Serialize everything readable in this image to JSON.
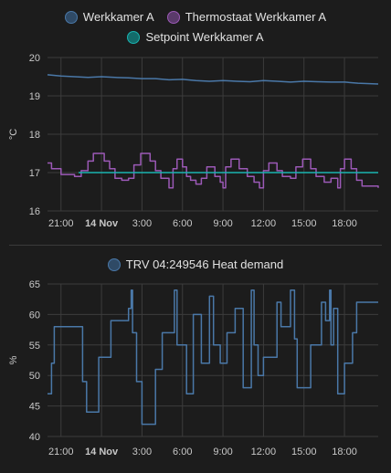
{
  "chart_data": [
    {
      "type": "line",
      "ylabel": "°C",
      "ylim": [
        16,
        20
      ],
      "yticks": [
        "16",
        "17",
        "18",
        "19",
        "20"
      ],
      "xlim": [
        20,
        44.5
      ],
      "xticks": [
        {
          "x": 21,
          "label": "21:00",
          "bold": false
        },
        {
          "x": 24,
          "label": "14 Nov",
          "bold": true
        },
        {
          "x": 27,
          "label": "3:00",
          "bold": false
        },
        {
          "x": 30,
          "label": "6:00",
          "bold": false
        },
        {
          "x": 33,
          "label": "9:00",
          "bold": false
        },
        {
          "x": 36,
          "label": "12:00",
          "bold": false
        },
        {
          "x": 39,
          "label": "15:00",
          "bold": false
        },
        {
          "x": 42,
          "label": "18:00",
          "bold": false
        }
      ],
      "grid": true,
      "legend_position": "top",
      "series": [
        {
          "name": "Werkkamer A",
          "color": "#4a78a8",
          "style": "line",
          "points": [
            [
              20,
              19.55
            ],
            [
              21,
              19.52
            ],
            [
              22,
              19.5
            ],
            [
              23,
              19.48
            ],
            [
              24,
              19.5
            ],
            [
              25,
              19.48
            ],
            [
              26,
              19.47
            ],
            [
              27,
              19.45
            ],
            [
              28,
              19.45
            ],
            [
              29,
              19.42
            ],
            [
              30,
              19.43
            ],
            [
              31,
              19.4
            ],
            [
              32,
              19.38
            ],
            [
              33,
              19.4
            ],
            [
              34,
              19.38
            ],
            [
              35,
              19.37
            ],
            [
              36,
              19.4
            ],
            [
              37,
              19.38
            ],
            [
              38,
              19.36
            ],
            [
              39,
              19.38
            ],
            [
              40,
              19.37
            ],
            [
              41,
              19.36
            ],
            [
              42,
              19.36
            ],
            [
              43,
              19.33
            ],
            [
              44.5,
              19.31
            ]
          ]
        },
        {
          "name": "Thermostaat Werkkamer A",
          "color": "#9b59b6",
          "style": "step",
          "points": [
            [
              20,
              17.25
            ],
            [
              20.3,
              17.1
            ],
            [
              21,
              16.95
            ],
            [
              22,
              16.9
            ],
            [
              22.5,
              17.05
            ],
            [
              23,
              17.3
            ],
            [
              23.4,
              17.5
            ],
            [
              24.2,
              17.3
            ],
            [
              24.6,
              17.1
            ],
            [
              25,
              16.85
            ],
            [
              25.5,
              16.8
            ],
            [
              26,
              16.85
            ],
            [
              26.4,
              17.2
            ],
            [
              26.9,
              17.5
            ],
            [
              27.6,
              17.3
            ],
            [
              28,
              17.05
            ],
            [
              28.4,
              16.85
            ],
            [
              29,
              16.6
            ],
            [
              29.3,
              17.1
            ],
            [
              29.6,
              17.35
            ],
            [
              30,
              17.15
            ],
            [
              30.3,
              16.9
            ],
            [
              30.6,
              16.8
            ],
            [
              31,
              16.7
            ],
            [
              31.4,
              16.85
            ],
            [
              31.8,
              17.15
            ],
            [
              32.4,
              16.9
            ],
            [
              32.8,
              16.75
            ],
            [
              33,
              16.6
            ],
            [
              33.2,
              17.15
            ],
            [
              33.6,
              17.35
            ],
            [
              34.2,
              17.1
            ],
            [
              34.8,
              16.9
            ],
            [
              35.3,
              16.75
            ],
            [
              35.7,
              16.6
            ],
            [
              36,
              17.05
            ],
            [
              36.4,
              17.25
            ],
            [
              37.0,
              17.05
            ],
            [
              37.4,
              16.9
            ],
            [
              38,
              16.85
            ],
            [
              38.4,
              17.15
            ],
            [
              38.9,
              17.35
            ],
            [
              39.5,
              17.1
            ],
            [
              39.9,
              16.9
            ],
            [
              40.5,
              16.75
            ],
            [
              41,
              16.85
            ],
            [
              41.5,
              16.6
            ],
            [
              41.7,
              17.1
            ],
            [
              42,
              17.35
            ],
            [
              42.5,
              17.1
            ],
            [
              42.9,
              16.8
            ],
            [
              43.3,
              16.65
            ],
            [
              44.5,
              16.6
            ]
          ]
        },
        {
          "name": "Setpoint Werkkamer A",
          "color": "#1ab3b0",
          "style": "line",
          "points": [
            [
              22.3,
              17
            ],
            [
              44.5,
              17
            ]
          ]
        }
      ]
    },
    {
      "type": "line",
      "ylabel": "%",
      "ylim": [
        40,
        65
      ],
      "yticks": [
        "40",
        "45",
        "50",
        "55",
        "60",
        "65"
      ],
      "xlim": [
        20,
        44.5
      ],
      "xticks": [
        {
          "x": 21,
          "label": "21:00",
          "bold": false
        },
        {
          "x": 24,
          "label": "14 Nov",
          "bold": true
        },
        {
          "x": 27,
          "label": "3:00",
          "bold": false
        },
        {
          "x": 30,
          "label": "6:00",
          "bold": false
        },
        {
          "x": 33,
          "label": "9:00",
          "bold": false
        },
        {
          "x": 36,
          "label": "12:00",
          "bold": false
        },
        {
          "x": 39,
          "label": "15:00",
          "bold": false
        },
        {
          "x": 42,
          "label": "18:00",
          "bold": false
        }
      ],
      "grid": true,
      "legend_position": "top",
      "series": [
        {
          "name": "TRV 04:249546 Heat demand",
          "color": "#4a78a8",
          "style": "step",
          "points": [
            [
              20,
              47
            ],
            [
              20.3,
              52
            ],
            [
              20.5,
              58
            ],
            [
              22.6,
              49
            ],
            [
              22.9,
              44
            ],
            [
              23.8,
              53
            ],
            [
              24.7,
              59
            ],
            [
              26.0,
              61
            ],
            [
              26.2,
              64
            ],
            [
              26.3,
              57
            ],
            [
              26.6,
              49
            ],
            [
              27,
              42
            ],
            [
              28,
              51
            ],
            [
              28.5,
              57
            ],
            [
              29.4,
              64
            ],
            [
              29.6,
              55
            ],
            [
              30.3,
              47
            ],
            [
              30.8,
              60
            ],
            [
              31.4,
              52
            ],
            [
              32.0,
              63
            ],
            [
              32.3,
              55
            ],
            [
              32.8,
              52
            ],
            [
              33.3,
              57
            ],
            [
              33.9,
              61
            ],
            [
              34.5,
              48
            ],
            [
              35.1,
              64
            ],
            [
              35.3,
              55
            ],
            [
              35.6,
              50
            ],
            [
              36.0,
              53
            ],
            [
              37.0,
              62
            ],
            [
              37.3,
              58
            ],
            [
              38.0,
              64
            ],
            [
              38.3,
              56
            ],
            [
              38.5,
              48
            ],
            [
              39.5,
              55
            ],
            [
              40.3,
              62
            ],
            [
              40.6,
              59
            ],
            [
              40.9,
              64
            ],
            [
              41.0,
              55
            ],
            [
              41.2,
              61
            ],
            [
              41.5,
              47
            ],
            [
              42.0,
              52
            ],
            [
              42.6,
              57
            ],
            [
              42.9,
              62
            ],
            [
              44.5,
              62
            ]
          ]
        }
      ]
    }
  ]
}
